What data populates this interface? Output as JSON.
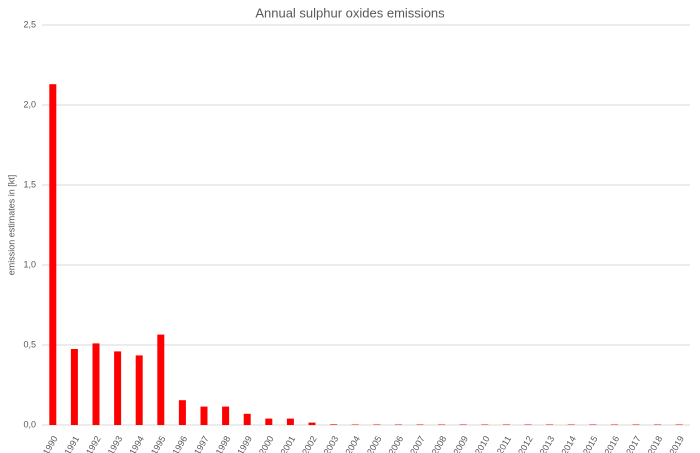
{
  "chart_data": {
    "type": "bar",
    "title": "Annual sulphur oxides emissions",
    "y_label": "emission estimates in [kt]",
    "categories": [
      "1990",
      "1991",
      "1992",
      "1993",
      "1994",
      "1995",
      "1996",
      "1997",
      "1998",
      "1999",
      "2000",
      "2001",
      "2002",
      "2003",
      "2004",
      "2005",
      "2006",
      "2007",
      "2008",
      "2009",
      "2010",
      "2011",
      "2012",
      "2013",
      "2014",
      "2015",
      "2016",
      "2017",
      "2018",
      "2019"
    ],
    "values": [
      2.13,
      0.475,
      0.51,
      0.46,
      0.435,
      0.565,
      0.155,
      0.115,
      0.115,
      0.07,
      0.04,
      0.04,
      0.015,
      0.004,
      0.003,
      0.003,
      0.003,
      0.003,
      0.003,
      0.003,
      0.003,
      0.003,
      0.003,
      0.003,
      0.003,
      0.003,
      0.003,
      0.003,
      0.003,
      0.003
    ],
    "color": "#ff0000",
    "ylim": [
      0,
      2.5
    ],
    "yticks": [
      {
        "value": 0,
        "label": "0,0"
      },
      {
        "value": 0.5,
        "label": "0,5"
      },
      {
        "value": 1,
        "label": "1,0"
      },
      {
        "value": 1.5,
        "label": "1,5"
      },
      {
        "value": 2,
        "label": "2,0"
      },
      {
        "value": 2.5,
        "label": "2,5"
      }
    ],
    "grid": true
  }
}
